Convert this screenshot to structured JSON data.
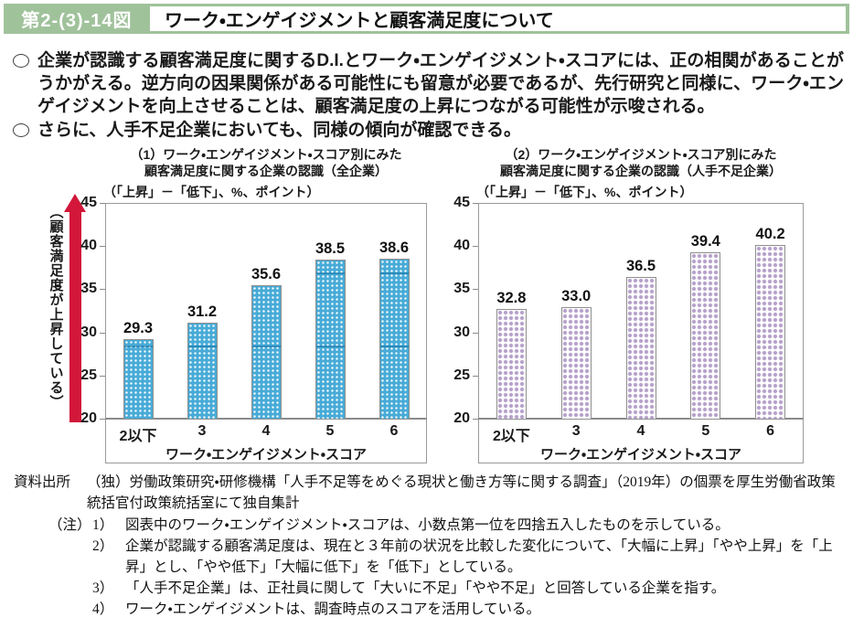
{
  "header": {
    "figure_label": "第2-(3)-14図",
    "title": "ワーク・エンゲイジメントと顧客満足度について"
  },
  "bullets": [
    {
      "text": "企業が認識する顧客満足度に関するD.I.とワーク・エンゲイジメント・スコアには、正の相関があることがうかがえる。逆方向の因果関係がある可能性にも留意が必要であるが、先行研究と同様に、ワーク・エンゲイジメントを向上させることは、顧客満足度の上昇につながる可能性が示唆される。"
    },
    {
      "text": "さらに、人手不足企業においても、同様の傾向が確認できる。"
    }
  ],
  "y_axis_arrow_label": "（顧客満足度が上昇している）",
  "chart_data": [
    {
      "type": "bar",
      "title_line1": "（1）ワーク・エンゲイジメント・スコア別にみた",
      "title_line2": "顧客満足度に関する企業の認識（全企業）",
      "unit_label": "（「上昇」－「低下」、%、ポイント）",
      "categories": [
        "2以下",
        "3",
        "4",
        "5",
        "6"
      ],
      "values": [
        29.3,
        31.2,
        35.6,
        38.5,
        38.6
      ],
      "xlabel": "ワーク・エンゲイジメント・スコア",
      "ylim": [
        20,
        45
      ],
      "yticks": [
        20,
        25,
        30,
        35,
        40,
        45
      ],
      "grid": false,
      "legend": "none",
      "bar_color": "#48abd7",
      "pattern": "blue"
    },
    {
      "type": "bar",
      "title_line1": "（2）ワーク・エンゲイジメント・スコア別にみた",
      "title_line2": "顧客満足度に関する企業の認識（人手不足企業）",
      "unit_label": "（「上昇」－「低下」、%、ポイント）",
      "categories": [
        "2以下",
        "3",
        "4",
        "5",
        "6"
      ],
      "values": [
        32.8,
        33.0,
        36.5,
        39.4,
        40.2
      ],
      "xlabel": "ワーク・エンゲイジメント・スコア",
      "ylim": [
        20,
        45
      ],
      "yticks": [
        20,
        25,
        30,
        35,
        40,
        45
      ],
      "grid": false,
      "legend": "none",
      "bar_color": "#b5a0ca",
      "pattern": "purple"
    }
  ],
  "colors": {
    "header_green": "#a0c29b",
    "arrow_red": "#d2173a",
    "axis_gray": "#8a8a8a"
  },
  "source": {
    "label": "資料出所",
    "text": "（独）労働政策研究・研修機構「人手不足等をめぐる現状と働き方等に関する調査」（2019年）の個票を厚生労働省政策統括官付政策統括室にて独自集計"
  },
  "notes": {
    "label": "（注）",
    "items": [
      {
        "no": "1）",
        "text": "図表中のワーク・エンゲイジメント・スコアは、小数点第一位を四捨五入したものを示している。"
      },
      {
        "no": "2）",
        "text": "企業が認識する顧客満足度は、現在と３年前の状況を比較した変化について、「大幅に上昇」「やや上昇」を「上昇」とし、「やや低下」「大幅に低下」を「低下」としている。"
      },
      {
        "no": "3）",
        "text": "「人手不足企業」は、正社員に関して「大いに不足」「やや不足」と回答している企業を指す。"
      },
      {
        "no": "4）",
        "text": "ワーク・エンゲイジメントは、調査時点のスコアを活用している。"
      }
    ]
  }
}
